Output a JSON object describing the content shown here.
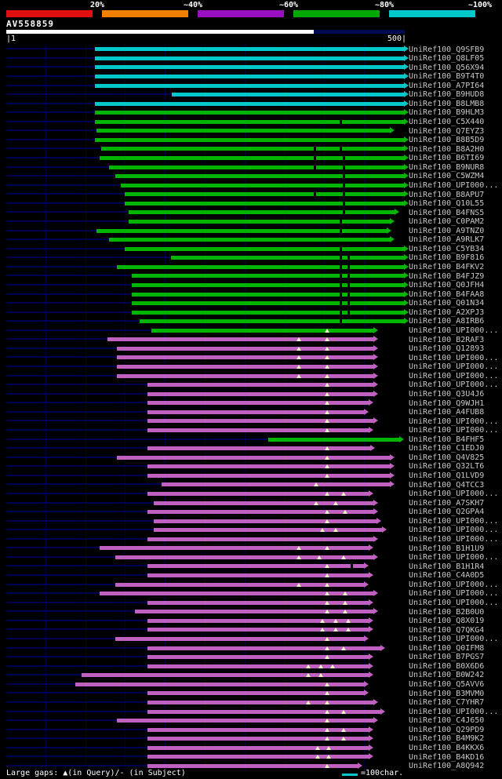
{
  "chart_data": {
    "type": "bar",
    "orientation": "horizontal",
    "title": "AV558859",
    "x_axis": {
      "min": 1,
      "max": 500,
      "left_label": "|1",
      "right_label": "500|",
      "units": "characters"
    },
    "legend": {
      "position": "top",
      "segments": [
        {
          "label": "20%",
          "color": "#e01010"
        },
        {
          "label": "~40%",
          "color": "#f08000"
        },
        {
          "label": "~60%",
          "color": "#9910c0"
        },
        {
          "label": "~80%",
          "color": "#00a800"
        },
        {
          "label": "~100%",
          "color": "#00c8c8"
        }
      ]
    },
    "bar_colors": {
      "cyan": "#00c8c8",
      "green": "#00b400",
      "magenta": "#c060c0"
    },
    "query_bar_color": "#ffffff",
    "footer": {
      "gaps_note": "Large gaps: ▲(in Query)/- (in Subject)",
      "scale_note": "=100char."
    },
    "rows": [
      {
        "label": "UniRef100_Q9SFB9",
        "color": "cyan",
        "start": 112,
        "end": 500
      },
      {
        "label": "UniRef100_Q8LF05",
        "color": "cyan",
        "start": 112,
        "end": 500
      },
      {
        "label": "UniRef100_Q56X94",
        "color": "cyan",
        "start": 112,
        "end": 500
      },
      {
        "label": "UniRef100_B9T4T0",
        "color": "cyan",
        "start": 112,
        "end": 500
      },
      {
        "label": "UniRef100_A7PI64",
        "color": "cyan",
        "start": 112,
        "end": 500
      },
      {
        "label": "UniRef100_B9HUD8",
        "color": "cyan",
        "start": 209,
        "end": 500
      },
      {
        "label": "UniRef100_B8LMB8",
        "color": "cyan",
        "start": 112,
        "end": 500
      },
      {
        "label": "UniRef100_B9HLM3",
        "color": "green",
        "start": 112,
        "end": 500
      },
      {
        "label": "UniRef100_C5X440",
        "color": "green",
        "start": 112,
        "end": 500,
        "dash": [
          420
        ]
      },
      {
        "label": "UniRef100_Q7EYZ3",
        "color": "green",
        "start": 114,
        "end": 482
      },
      {
        "label": "UniRef100_B8B5D9",
        "color": "green",
        "start": 112,
        "end": 500
      },
      {
        "label": "UniRef100_B8A2H0",
        "color": "green",
        "start": 120,
        "end": 500,
        "dash": [
          388,
          420
        ]
      },
      {
        "label": "UniRef100_B6TI69",
        "color": "green",
        "start": 118,
        "end": 500,
        "dash": [
          388,
          424
        ]
      },
      {
        "label": "UniRef100_B9NUR8",
        "color": "green",
        "start": 130,
        "end": 500,
        "dash": [
          388,
          424
        ]
      },
      {
        "label": "UniRef100_C5WZM4",
        "color": "green",
        "start": 138,
        "end": 500,
        "dash": [
          424
        ]
      },
      {
        "label": "UniRef100_UPI000...",
        "color": "green",
        "start": 145,
        "end": 500,
        "dash": [
          424
        ]
      },
      {
        "label": "UniRef100_B8APU7",
        "color": "green",
        "start": 150,
        "end": 500,
        "dash": [
          388,
          424
        ]
      },
      {
        "label": "UniRef100_Q10L55",
        "color": "green",
        "start": 150,
        "end": 500,
        "dash": [
          424
        ]
      },
      {
        "label": "UniRef100_B4FNS5",
        "color": "green",
        "start": 155,
        "end": 488,
        "dash": [
          424
        ]
      },
      {
        "label": "UniRef100_C0PAM2",
        "color": "green",
        "start": 155,
        "end": 482,
        "dash": [
          420
        ]
      },
      {
        "label": "UniRef100_A9TNZ0",
        "color": "green",
        "start": 114,
        "end": 478,
        "dash": [
          420
        ]
      },
      {
        "label": "UniRef100_A9RLK7",
        "color": "green",
        "start": 130,
        "end": 482
      },
      {
        "label": "UniRef100_C5YB34",
        "color": "green",
        "start": 150,
        "end": 500,
        "dash": [
          420
        ]
      },
      {
        "label": "UniRef100_B9F816",
        "color": "green",
        "start": 208,
        "end": 500,
        "dash": [
          420,
          430
        ]
      },
      {
        "label": "UniRef100_B4FKV2",
        "color": "green",
        "start": 140,
        "end": 500,
        "dash": [
          420,
          430
        ]
      },
      {
        "label": "UniRef100_B4FJZ9",
        "color": "green",
        "start": 158,
        "end": 500,
        "dash": [
          420,
          430
        ]
      },
      {
        "label": "UniRef100_Q0JFH4",
        "color": "green",
        "start": 158,
        "end": 500,
        "dash": [
          420,
          430
        ]
      },
      {
        "label": "UniRef100_B4FAA8",
        "color": "green",
        "start": 158,
        "end": 500,
        "dash": [
          420,
          430
        ]
      },
      {
        "label": "UniRef100_Q01N34",
        "color": "green",
        "start": 158,
        "end": 500,
        "dash": [
          420,
          430
        ]
      },
      {
        "label": "UniRef100_A2XPJ3",
        "color": "green",
        "start": 158,
        "end": 500,
        "dash": [
          420,
          430
        ]
      },
      {
        "label": "UniRef100_A8IRB6",
        "color": "green",
        "start": 168,
        "end": 500,
        "dash": [
          420
        ]
      },
      {
        "label": "UniRef100_UPI000...",
        "color": "green",
        "start": 183,
        "end": 462,
        "tri": [
          404
        ]
      },
      {
        "label": "UniRef100_B2RAF3",
        "color": "magenta",
        "start": 128,
        "end": 462,
        "tri": [
          368,
          404
        ]
      },
      {
        "label": "UniRef100_Q12893",
        "color": "magenta",
        "start": 140,
        "end": 462,
        "tri": [
          368,
          404
        ]
      },
      {
        "label": "UniRef100_UPI000...",
        "color": "magenta",
        "start": 140,
        "end": 462,
        "tri": [
          368,
          404
        ]
      },
      {
        "label": "UniRef100_UPI000...",
        "color": "magenta",
        "start": 140,
        "end": 462,
        "tri": [
          368,
          404
        ]
      },
      {
        "label": "UniRef100_UPI000...",
        "color": "magenta",
        "start": 140,
        "end": 462,
        "tri": [
          368,
          404
        ]
      },
      {
        "label": "UniRef100_UPI000...",
        "color": "magenta",
        "start": 178,
        "end": 462,
        "tri": [
          404
        ]
      },
      {
        "label": "UniRef100_Q3U4J6",
        "color": "magenta",
        "start": 178,
        "end": 462,
        "tri": [
          404
        ]
      },
      {
        "label": "UniRef100_Q9WJH1",
        "color": "magenta",
        "start": 178,
        "end": 456,
        "tri": [
          404
        ]
      },
      {
        "label": "UniRef100_A4FUB8",
        "color": "magenta",
        "start": 178,
        "end": 450,
        "tri": [
          404
        ]
      },
      {
        "label": "UniRef100_UPI000...",
        "color": "magenta",
        "start": 178,
        "end": 462,
        "tri": [
          404
        ]
      },
      {
        "label": "UniRef100_UPI000...",
        "color": "magenta",
        "start": 178,
        "end": 456,
        "tri": [
          404
        ]
      },
      {
        "label": "UniRef100_B4FHF5",
        "color": "green",
        "start": 330,
        "end": 494
      },
      {
        "label": "UniRef100_C1EDJ0",
        "color": "magenta",
        "start": 178,
        "end": 458,
        "tri": [
          404
        ]
      },
      {
        "label": "UniRef100_Q4V825",
        "color": "magenta",
        "start": 140,
        "end": 482,
        "tri": [
          404
        ]
      },
      {
        "label": "UniRef100_Q32LT6",
        "color": "magenta",
        "start": 178,
        "end": 482,
        "tri": [
          404
        ]
      },
      {
        "label": "UniRef100_Q1LVD9",
        "color": "magenta",
        "start": 178,
        "end": 482,
        "tri": [
          404
        ]
      },
      {
        "label": "UniRef100_Q4TCC3",
        "color": "magenta",
        "start": 196,
        "end": 482,
        "tri": [
          390
        ]
      },
      {
        "label": "UniRef100_UPI000...",
        "color": "magenta",
        "start": 178,
        "end": 456,
        "tri": [
          404,
          424
        ]
      },
      {
        "label": "UniRef100_A7SKH7",
        "color": "magenta",
        "start": 186,
        "end": 462,
        "tri": [
          390,
          414
        ]
      },
      {
        "label": "UniRef100_Q2GPA4",
        "color": "magenta",
        "start": 178,
        "end": 462,
        "tri": [
          404,
          426
        ]
      },
      {
        "label": "UniRef100_UPI000...",
        "color": "magenta",
        "start": 186,
        "end": 466,
        "tri": [
          404
        ]
      },
      {
        "label": "UniRef100_UPI000...",
        "color": "magenta",
        "start": 186,
        "end": 472,
        "tri": [
          398,
          414
        ]
      },
      {
        "label": "UniRef100_UPI000...",
        "color": "magenta",
        "start": 178,
        "end": 462
      },
      {
        "label": "UniRef100_B1H1U9",
        "color": "magenta",
        "start": 118,
        "end": 456,
        "tri": [
          368,
          404
        ]
      },
      {
        "label": "UniRef100_UPI000...",
        "color": "magenta",
        "start": 138,
        "end": 462,
        "tri": [
          368,
          394,
          424
        ]
      },
      {
        "label": "UniRef100_B1H1R4",
        "color": "magenta",
        "start": 178,
        "end": 450,
        "tri": [
          404
        ],
        "dash": [
          434
        ]
      },
      {
        "label": "UniRef100_C4A0D5",
        "color": "magenta",
        "start": 178,
        "end": 456,
        "tri": [
          404
        ]
      },
      {
        "label": "UniRef100_UPI000...",
        "color": "magenta",
        "start": 138,
        "end": 450,
        "tri": [
          368,
          404
        ]
      },
      {
        "label": "UniRef100_UPI000...",
        "color": "magenta",
        "start": 118,
        "end": 462,
        "tri": [
          404,
          426
        ]
      },
      {
        "label": "UniRef100_UPI000...",
        "color": "magenta",
        "start": 178,
        "end": 456,
        "tri": [
          404,
          426
        ]
      },
      {
        "label": "UniRef100_B2B0U0",
        "color": "magenta",
        "start": 162,
        "end": 462,
        "tri": [
          404,
          426
        ]
      },
      {
        "label": "UniRef100_Q8X019",
        "color": "magenta",
        "start": 178,
        "end": 456,
        "tri": [
          398,
          414,
          430
        ]
      },
      {
        "label": "UniRef100_Q7QKG4",
        "color": "magenta",
        "start": 178,
        "end": 456,
        "tri": [
          398,
          414,
          430
        ]
      },
      {
        "label": "UniRef100_UPI000...",
        "color": "magenta",
        "start": 138,
        "end": 450,
        "tri": [
          404
        ]
      },
      {
        "label": "UniRef100_Q0IFM8",
        "color": "magenta",
        "start": 178,
        "end": 470,
        "tri": [
          404,
          424
        ]
      },
      {
        "label": "UniRef100_B7PGS7",
        "color": "magenta",
        "start": 178,
        "end": 456,
        "tri": [
          404
        ]
      },
      {
        "label": "UniRef100_B0X6D6",
        "color": "magenta",
        "start": 178,
        "end": 456,
        "tri": [
          380,
          396,
          410
        ]
      },
      {
        "label": "UniRef100_B0W242",
        "color": "magenta",
        "start": 95,
        "end": 456,
        "tri": [
          380,
          396
        ]
      },
      {
        "label": "UniRef100_Q5AVV6",
        "color": "magenta",
        "start": 88,
        "end": 450,
        "tri": [
          404
        ]
      },
      {
        "label": "UniRef100_B3MVM0",
        "color": "magenta",
        "start": 178,
        "end": 450,
        "tri": [
          404
        ]
      },
      {
        "label": "UniRef100_C7YHR7",
        "color": "magenta",
        "start": 178,
        "end": 462,
        "tri": [
          380,
          404
        ]
      },
      {
        "label": "UniRef100_UPI000...",
        "color": "magenta",
        "start": 178,
        "end": 470,
        "tri": [
          404,
          424
        ]
      },
      {
        "label": "UniRef100_C4J650",
        "color": "magenta",
        "start": 140,
        "end": 462,
        "tri": [
          404
        ]
      },
      {
        "label": "UniRef100_Q29PD9",
        "color": "magenta",
        "start": 178,
        "end": 456,
        "tri": [
          404,
          424
        ]
      },
      {
        "label": "UniRef100_B4M9K2",
        "color": "magenta",
        "start": 178,
        "end": 456,
        "tri": [
          404,
          424
        ]
      },
      {
        "label": "UniRef100_B4KKX6",
        "color": "magenta",
        "start": 178,
        "end": 456,
        "tri": [
          392,
          406
        ]
      },
      {
        "label": "UniRef100_B4KD16",
        "color": "magenta",
        "start": 178,
        "end": 456,
        "tri": [
          392,
          406
        ]
      },
      {
        "label": "UniRef100_A8Q942",
        "color": "magenta",
        "start": 178,
        "end": 442,
        "tri": [
          404
        ]
      }
    ]
  }
}
